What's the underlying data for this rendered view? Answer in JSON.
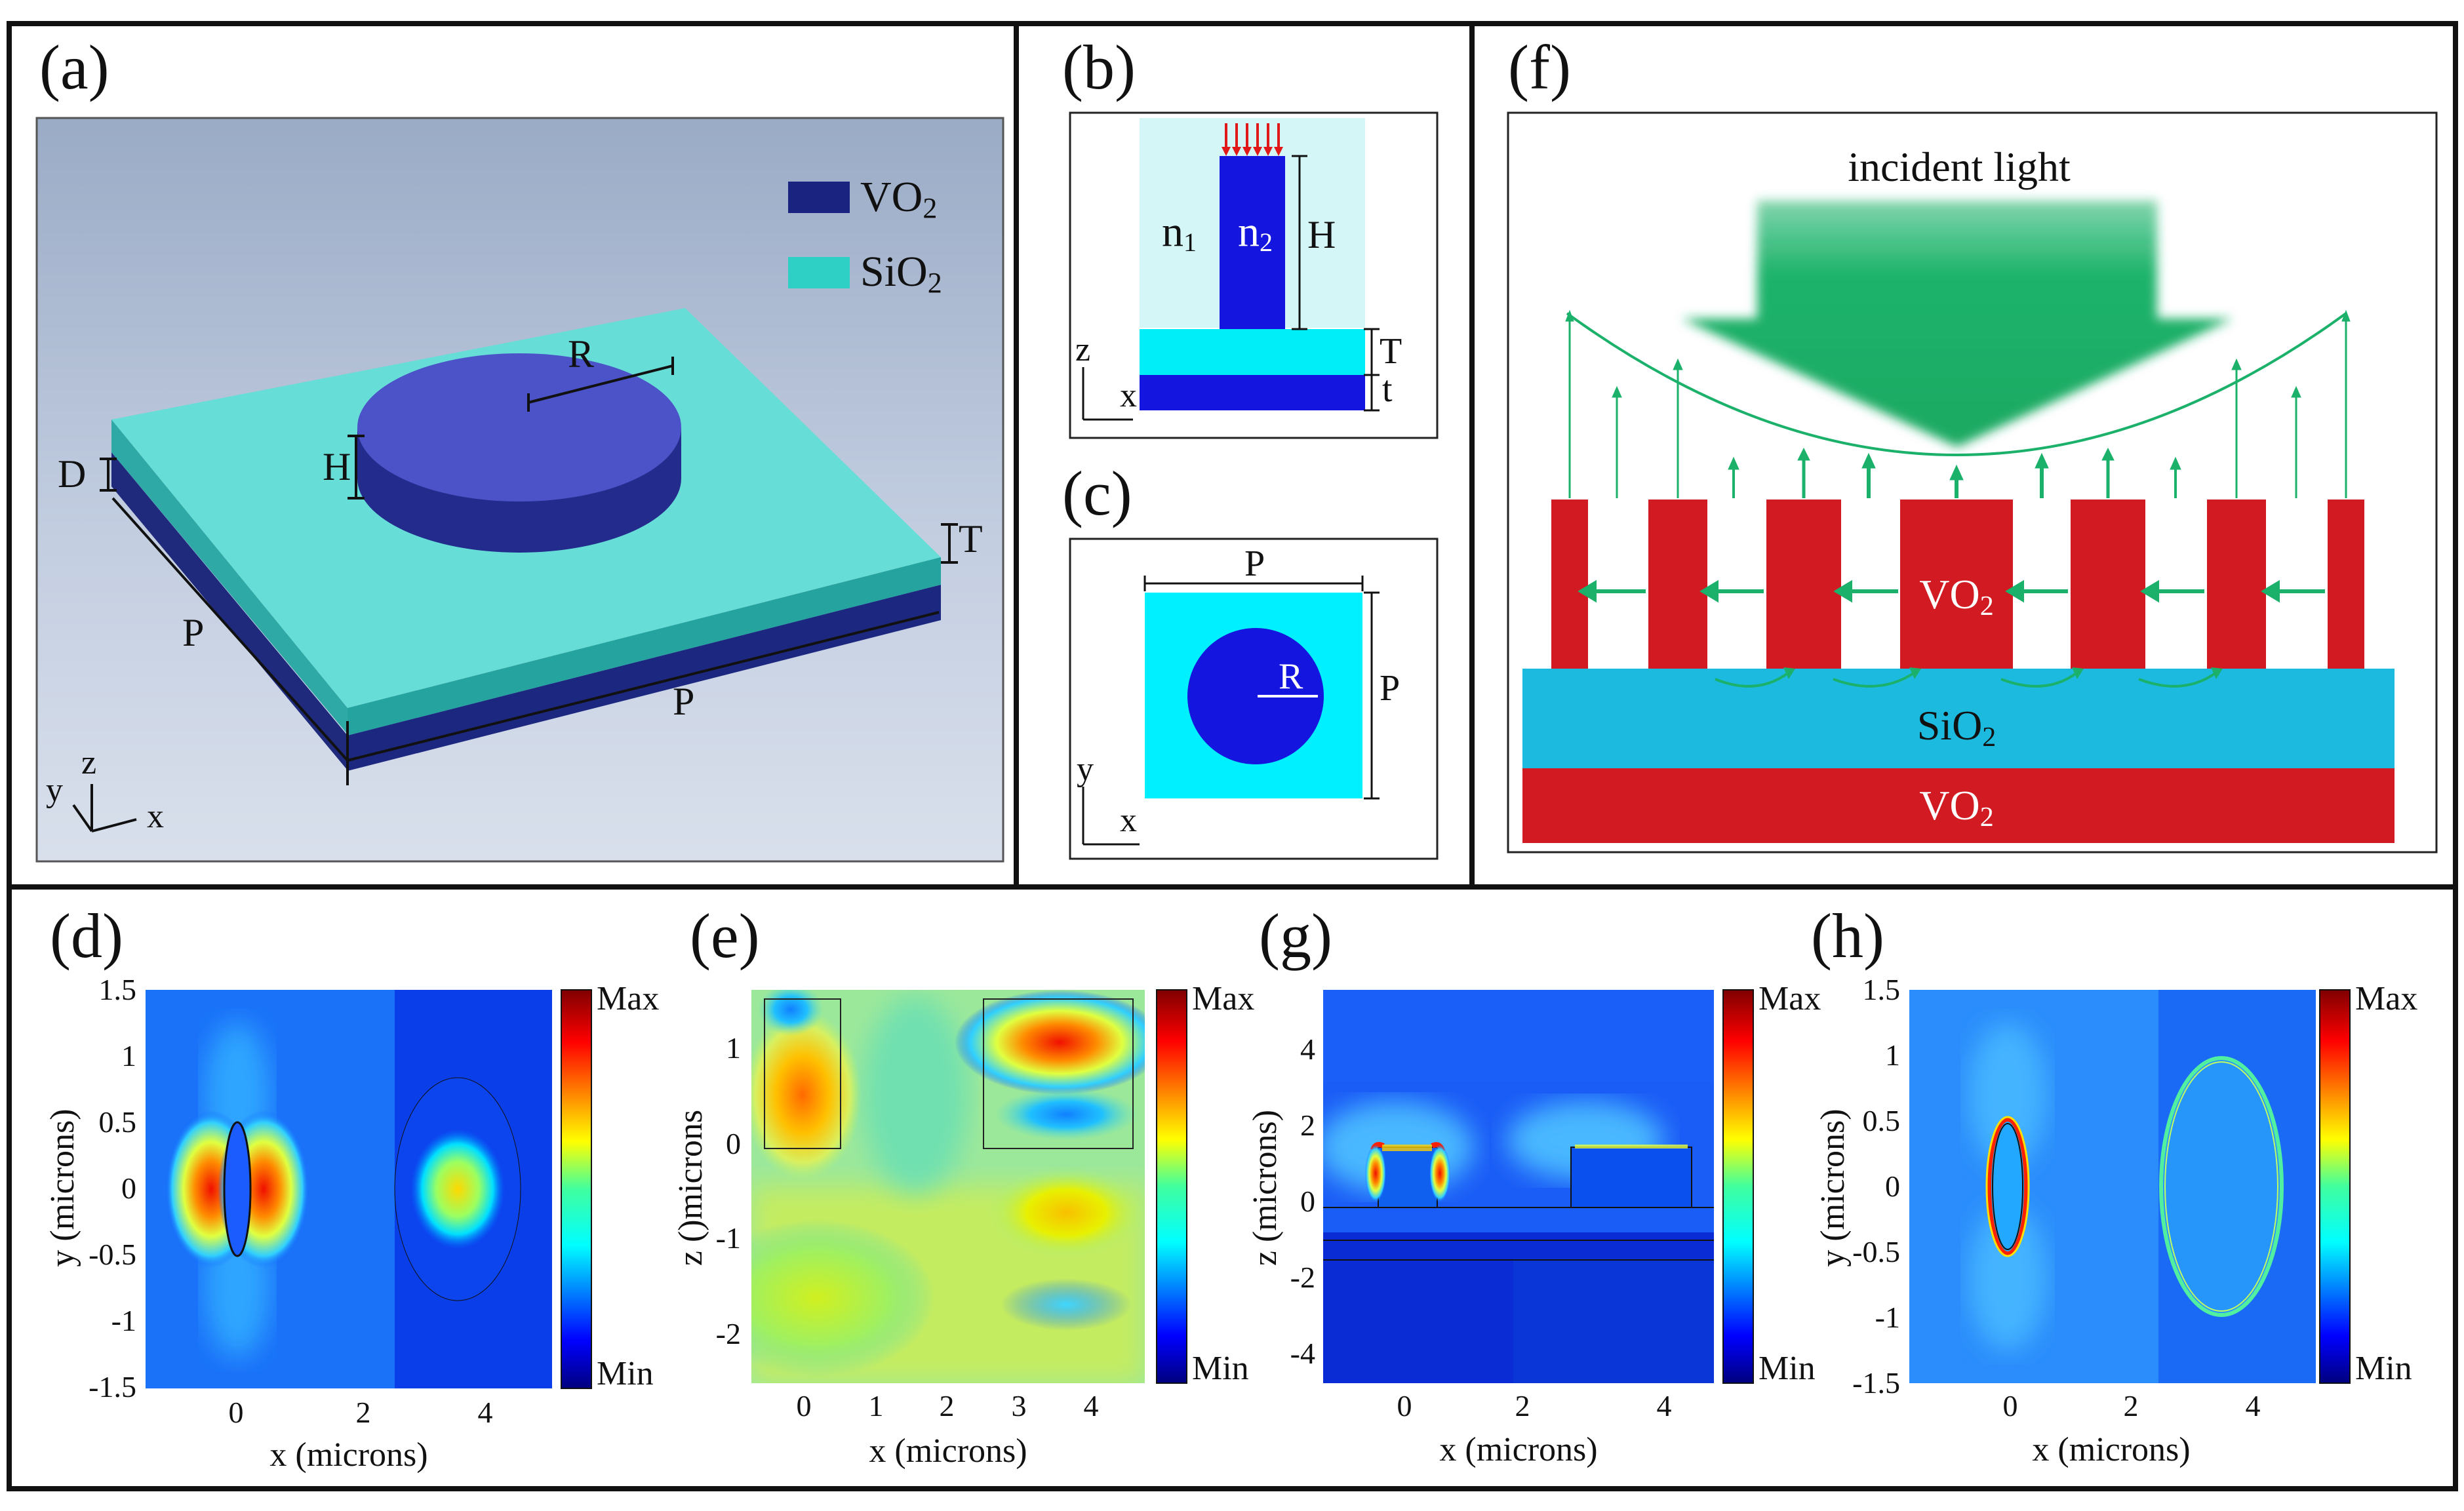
{
  "colors": {
    "vo2_dark": "#242f8f",
    "vo2_blue": "#1616d8",
    "sio2_cyan": "#3ad6cc",
    "cyan_bright": "#00f0ff",
    "light_cyan": "#d4f6f6",
    "red_vo2": "#d21a22",
    "sio2_blue": "#1cbadf",
    "arrow_green": "#1bb16a",
    "jet_dark": "#00007f",
    "jet_red": "#ff0000"
  },
  "panel_a": {
    "label": "(a)",
    "legend": [
      {
        "name": "VO",
        "sub": "2",
        "color": "#1a2480"
      },
      {
        "name": "SiO",
        "sub": "2",
        "color": "#2ed0c6"
      }
    ],
    "dims": {
      "R": "R",
      "H": "H",
      "D": "D",
      "T": "T",
      "P1": "P",
      "P2": "P"
    },
    "axes": {
      "y": "y",
      "z": "z",
      "x": "x"
    }
  },
  "panel_b": {
    "label": "(b)",
    "n1": "n",
    "n1_sub": "1",
    "n2": "n",
    "n2_sub": "2",
    "H": "H",
    "T": "T",
    "t": "t",
    "axis_z": "z",
    "axis_x": "x"
  },
  "panel_c": {
    "label": "(c)",
    "P_top": "P",
    "P_side": "P",
    "R": "R",
    "axis_y": "y",
    "axis_x": "x"
  },
  "panel_f": {
    "label": "(f)",
    "incident": "incident light",
    "vo2_mid": "VO",
    "vo2_mid_sub": "2",
    "sio2": "SiO",
    "sio2_sub": "2",
    "vo2_bottom": "VO",
    "vo2_bottom_sub": "2"
  },
  "maps": [
    {
      "label": "(d)",
      "xlabel": "x (microns)",
      "ylabel": "y (microns)",
      "xticks": [
        "0",
        "2",
        "4"
      ],
      "yticks": [
        "1.5",
        "1",
        "0.5",
        "0",
        "-0.5",
        "-1",
        "-1.5"
      ],
      "cb_max": "Max",
      "cb_min": "Min"
    },
    {
      "label": "(e)",
      "xlabel": "x (microns)",
      "ylabel": "z ()microns",
      "xticks": [
        "0",
        "1",
        "2",
        "3",
        "4"
      ],
      "yticks": [
        "1",
        "0",
        "-1",
        "-2"
      ],
      "cb_max": "Max",
      "cb_min": "Min"
    },
    {
      "label": "(g)",
      "xlabel": "x (microns)",
      "ylabel": "z (microns)",
      "xticks": [
        "0",
        "2",
        "4"
      ],
      "yticks": [
        "4",
        "2",
        "0",
        "-2",
        "-4"
      ],
      "cb_max": "Max",
      "cb_min": "Min"
    },
    {
      "label": "(h)",
      "xlabel": "x (microns)",
      "ylabel": "y (microns)",
      "xticks": [
        "0",
        "2",
        "4"
      ],
      "yticks": [
        "1.5",
        "1",
        "0.5",
        "0",
        "-0.5",
        "-1",
        "-1.5"
      ],
      "cb_max": "Max",
      "cb_min": "Min"
    }
  ]
}
